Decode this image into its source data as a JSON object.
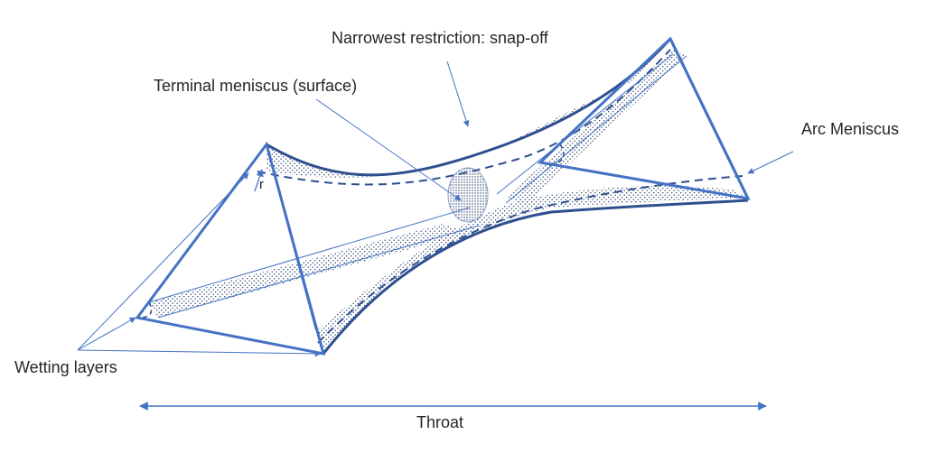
{
  "labels": {
    "snap_off": "Narrowest restriction: snap-off",
    "terminal_meniscus": "Terminal meniscus (surface)",
    "arc_meniscus": "Arc Meniscus",
    "wetting_layers": "Wetting layers",
    "throat": "Throat",
    "radius": "r"
  },
  "colors": {
    "outline": "#2e4f8f",
    "edge": "#4472c4",
    "stipple": "#1f3864",
    "text": "#262626",
    "leader": "#4472c4"
  }
}
